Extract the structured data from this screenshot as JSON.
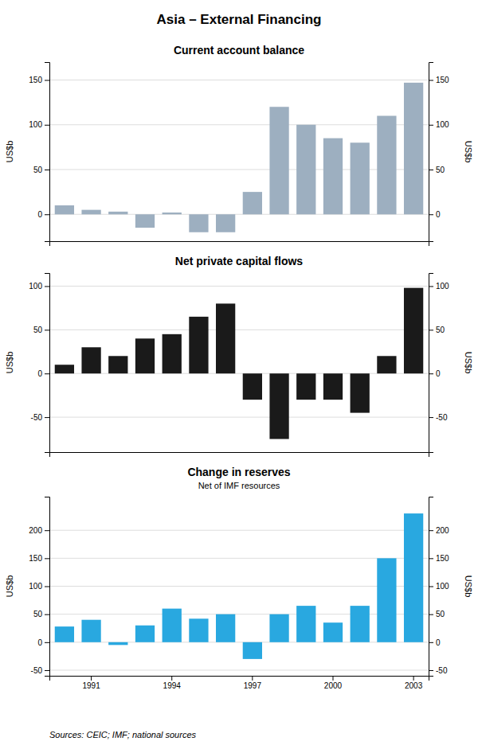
{
  "title": "Asia – External Financing",
  "annotations": [
    "Sources: CEIC; IMF; national sources"
  ],
  "chart_data": [
    {
      "type": "bar",
      "title": "Current account balance",
      "categories": [
        null,
        null,
        null,
        null,
        null,
        null,
        null,
        null,
        null,
        null,
        null,
        null,
        null,
        null
      ],
      "values": [
        10,
        5,
        3,
        -15,
        2,
        -20,
        -20,
        25,
        120,
        100,
        85,
        80,
        110,
        147
      ],
      "color": "#9dafc0",
      "ylim": [
        -30,
        170
      ],
      "yticks": [
        0,
        50,
        100,
        150
      ],
      "ylabel": "US$b",
      "y2lim": [
        -30,
        170
      ],
      "y2ticks": [
        0,
        50,
        100,
        150
      ],
      "y2label": "US$b",
      "grid": true,
      "tick_labels": "y"
    },
    {
      "type": "bar",
      "title": "Net private capital flows",
      "categories": [
        null,
        null,
        null,
        null,
        null,
        null,
        null,
        null,
        null,
        null,
        null,
        null,
        null,
        null
      ],
      "values": [
        10,
        30,
        20,
        40,
        45,
        65,
        80,
        -30,
        -75,
        -30,
        -30,
        -45,
        20,
        98
      ],
      "color": "#1a1a1a",
      "ylim": [
        -90,
        115
      ],
      "yticks": [
        -50,
        0,
        50,
        100
      ],
      "ylabel": "US$b",
      "y2lim": [
        -90,
        115
      ],
      "y2ticks": [
        -50,
        0,
        50,
        100
      ],
      "y2label": "US$b",
      "grid": true,
      "tick_labels": "y"
    },
    {
      "type": "bar",
      "title": "Change in reserves",
      "subtitle": "Net of IMF resources",
      "categories": [
        null,
        "1991",
        null,
        null,
        "1994",
        null,
        null,
        "1997",
        null,
        null,
        "2000",
        null,
        null,
        "2003"
      ],
      "values": [
        28,
        40,
        -5,
        30,
        60,
        42,
        50,
        -30,
        50,
        65,
        35,
        65,
        150,
        230
      ],
      "color": "#29a8e0",
      "ylim": [
        -60,
        260
      ],
      "yticks": [
        -50,
        0,
        50,
        100,
        150,
        200
      ],
      "ylabel": "US$b",
      "y2lim": [
        -60,
        260
      ],
      "y2ticks": [
        -50,
        0,
        50,
        100,
        150,
        200
      ],
      "y2label": "US$b",
      "grid": true
    }
  ]
}
